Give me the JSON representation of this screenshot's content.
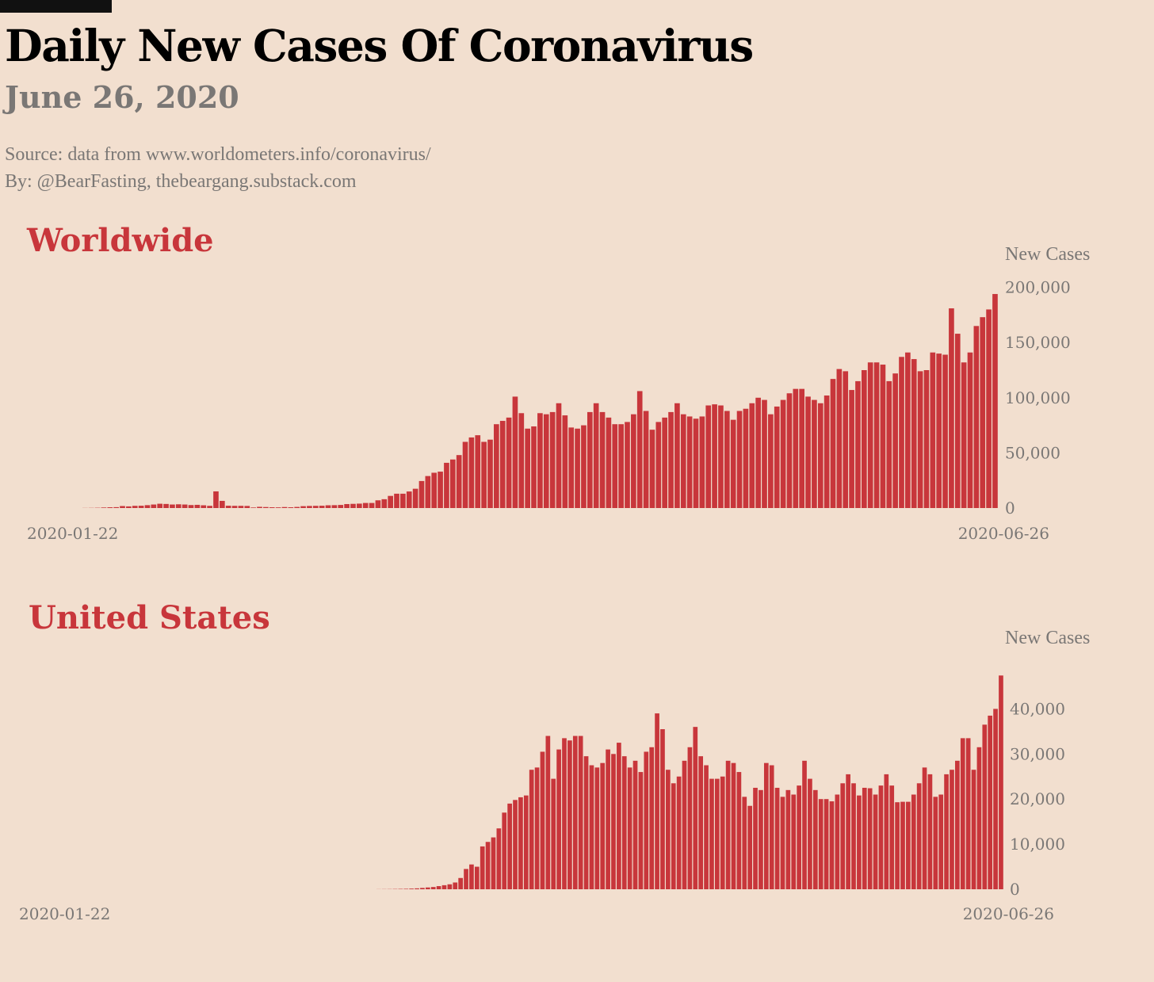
{
  "header": {
    "title": "Daily New Cases Of Coronavirus",
    "date": "June 26, 2020",
    "source": "Source: data from  www.worldometers.info/coronavirus/",
    "byline": "By: @BearFasting, thebeargang.substack.com"
  },
  "colors": {
    "background": "#f2dfcf",
    "bar": "#c8363b",
    "title": "#000000",
    "muted": "#7a7775",
    "section": "#c8363b"
  },
  "chart_data": [
    {
      "type": "bar",
      "title": "Worldwide",
      "ylabel": "New Cases",
      "xlabel": "",
      "x_start": "2020-01-22",
      "x_end": "2020-06-26",
      "x_tick_labels": [
        "2020-01-22",
        "2020-06-26"
      ],
      "y_ticks": [
        0,
        50000,
        100000,
        150000,
        200000
      ],
      "y_tick_labels": [
        "0",
        "50,000",
        "100,000",
        "150,000",
        "200,000"
      ],
      "ylim": [
        0,
        200000
      ],
      "y_axis_side": "right",
      "grid": false,
      "values": [
        100,
        150,
        250,
        500,
        700,
        800,
        1800,
        1500,
        2000,
        2100,
        2600,
        3200,
        3900,
        3700,
        3200,
        3400,
        3200,
        2700,
        2900,
        2500,
        2000,
        15100,
        6500,
        2100,
        2000,
        2000,
        1900,
        500,
        1100,
        900,
        700,
        600,
        900,
        700,
        1000,
        1700,
        1900,
        2000,
        2100,
        2500,
        2600,
        2800,
        3600,
        3800,
        4000,
        4600,
        4600,
        7000,
        8000,
        11000,
        13000,
        13000,
        15000,
        17500,
        24500,
        29000,
        32000,
        33000,
        41000,
        44000,
        48000,
        60000,
        64000,
        66000,
        60000,
        62000,
        76000,
        79000,
        82000,
        101000,
        86000,
        72000,
        74000,
        86000,
        85000,
        87000,
        95000,
        84000,
        73000,
        72000,
        75000,
        87000,
        95000,
        87000,
        82000,
        76000,
        76000,
        78000,
        85000,
        106000,
        88000,
        71000,
        78000,
        82000,
        87000,
        95000,
        85000,
        83000,
        81000,
        83000,
        93000,
        94000,
        93000,
        88000,
        80000,
        88000,
        90000,
        95000,
        100000,
        98000,
        85000,
        92000,
        98000,
        104000,
        108000,
        108000,
        101000,
        98000,
        95000,
        102000,
        117000,
        126000,
        124000,
        107000,
        115000,
        125000,
        132000,
        132000,
        130000,
        115000,
        122000,
        137000,
        141000,
        135000,
        124000,
        125000,
        141000,
        140000,
        139000,
        181000,
        158000,
        132000,
        141000,
        165000,
        173000,
        180000,
        194000
      ]
    },
    {
      "type": "bar",
      "title": "United States",
      "ylabel": "New Cases",
      "xlabel": "",
      "x_start": "2020-01-22",
      "x_end": "2020-06-26",
      "x_tick_labels": [
        "2020-01-22",
        "2020-06-26"
      ],
      "y_ticks": [
        0,
        10000,
        20000,
        30000,
        40000
      ],
      "y_tick_labels": [
        "0",
        "10,000",
        "20,000",
        "30,000",
        "40,000"
      ],
      "ylim": [
        0,
        48000
      ],
      "y_axis_side": "right",
      "grid": false,
      "values": [
        0,
        0,
        0,
        0,
        0,
        0,
        0,
        0,
        0,
        0,
        0,
        0,
        0,
        0,
        0,
        0,
        0,
        0,
        0,
        0,
        0,
        0,
        0,
        0,
        0,
        0,
        0,
        0,
        0,
        0,
        0,
        0,
        0,
        0,
        0,
        0,
        0,
        0,
        0,
        0,
        0,
        0,
        0,
        0,
        0,
        0,
        0,
        0,
        0,
        0,
        0,
        0,
        0,
        20,
        30,
        40,
        60,
        80,
        100,
        150,
        200,
        300,
        400,
        500,
        700,
        900,
        1100,
        1500,
        2500,
        4500,
        5500,
        5000,
        9500,
        10500,
        11500,
        13500,
        17000,
        19000,
        19800,
        20400,
        20800,
        26500,
        27000,
        30500,
        34000,
        24500,
        31000,
        33500,
        33000,
        34000,
        34000,
        29500,
        27500,
        27000,
        28000,
        31000,
        30000,
        32500,
        29500,
        27000,
        28500,
        26000,
        30500,
        31500,
        39000,
        35500,
        26500,
        23500,
        25000,
        28500,
        31500,
        36000,
        29500,
        27500,
        24500,
        24500,
        25000,
        28500,
        28000,
        26000,
        20500,
        18500,
        22500,
        22000,
        28000,
        27500,
        22500,
        20500,
        22000,
        21000,
        23000,
        28500,
        24500,
        22000,
        20000,
        20000,
        19500,
        21000,
        23500,
        25500,
        23500,
        20800,
        22500,
        22400,
        21000,
        23000,
        25500,
        23000,
        19300,
        19400,
        19400,
        21000,
        23500,
        27000,
        25500,
        20500,
        21000,
        25500,
        26500,
        28500,
        33500,
        33500,
        26500,
        31500,
        36500,
        38500,
        40000,
        47400
      ]
    }
  ]
}
